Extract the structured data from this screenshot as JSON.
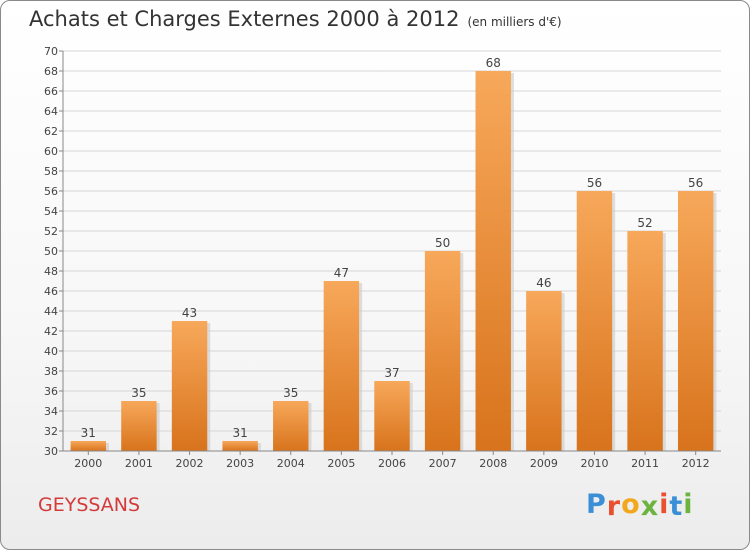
{
  "chart_data": {
    "type": "bar",
    "title": "Achats et Charges Externes 2000 à 2012",
    "subtitle": "(en milliers d'€)",
    "categories": [
      "2000",
      "2001",
      "2002",
      "2003",
      "2004",
      "2005",
      "2006",
      "2007",
      "2008",
      "2009",
      "2010",
      "2011",
      "2012"
    ],
    "values": [
      31,
      35,
      43,
      31,
      35,
      47,
      37,
      50,
      68,
      46,
      56,
      52,
      56
    ],
    "ylim": [
      30,
      70
    ],
    "yticks": [
      30,
      32,
      34,
      36,
      38,
      40,
      42,
      44,
      46,
      48,
      50,
      52,
      54,
      56,
      58,
      60,
      62,
      64,
      66,
      68,
      70
    ],
    "grid": true,
    "bar_color_top": "#f7a85a",
    "bar_color_bottom": "#d8731c"
  },
  "footer": {
    "commune": "GEYSSANS",
    "brand_letters": [
      "P",
      "r",
      "o",
      "x",
      "i",
      "t",
      "i"
    ],
    "brand_colors": [
      "#3a8fd6",
      "#e8502f",
      "#f2a81d",
      "#6cb33f",
      "#e8502f",
      "#3a8fd6",
      "#6cb33f"
    ]
  }
}
